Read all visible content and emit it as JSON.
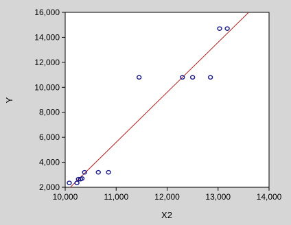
{
  "chart_data": {
    "type": "scatter",
    "title": "",
    "xlabel": "X2",
    "ylabel": "Y",
    "xlim": [
      10000,
      14000
    ],
    "ylim": [
      2000,
      16000
    ],
    "x_ticks": [
      10000,
      11000,
      12000,
      13000,
      14000
    ],
    "y_ticks": [
      2000,
      4000,
      6000,
      8000,
      10000,
      12000,
      14000,
      16000
    ],
    "x_tick_labels": [
      "10,000",
      "11,000",
      "12,000",
      "13,000",
      "14,000"
    ],
    "y_tick_labels": [
      "2,000",
      "4,000",
      "6,000",
      "8,000",
      "10,000",
      "12,000",
      "14,000",
      "16,000"
    ],
    "grid": false,
    "points": [
      {
        "x": 10080,
        "y": 2350
      },
      {
        "x": 10230,
        "y": 2350
      },
      {
        "x": 10260,
        "y": 2650
      },
      {
        "x": 10300,
        "y": 2650
      },
      {
        "x": 10330,
        "y": 2700
      },
      {
        "x": 10380,
        "y": 3200
      },
      {
        "x": 10650,
        "y": 3200
      },
      {
        "x": 10850,
        "y": 3200
      },
      {
        "x": 11450,
        "y": 10800
      },
      {
        "x": 12300,
        "y": 10800
      },
      {
        "x": 12500,
        "y": 10800
      },
      {
        "x": 12850,
        "y": 10800
      },
      {
        "x": 13030,
        "y": 14700
      },
      {
        "x": 13180,
        "y": 14700
      }
    ],
    "fit_line": {
      "x": [
        10100,
        13600
      ],
      "y": [
        2000,
        16000
      ],
      "color": "#b22222"
    },
    "marker_color": "#1a1a8c"
  }
}
